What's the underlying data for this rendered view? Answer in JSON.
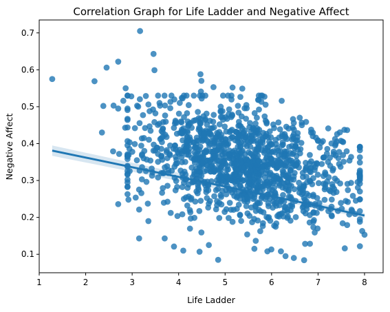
{
  "chart_data": {
    "type": "scatter",
    "title": "Correlation Graph for Life Ladder and Negative Affect",
    "xlabel": "Life Ladder",
    "ylabel": "Negative Affect",
    "xlim": [
      1.0,
      8.4
    ],
    "ylim": [
      0.05,
      0.735
    ],
    "xticks": [
      1,
      2,
      3,
      4,
      5,
      6,
      7,
      8
    ],
    "yticks": [
      0.1,
      0.2,
      0.3,
      0.4,
      0.5,
      0.6,
      0.7
    ],
    "ytick_labels": [
      "0.1",
      "0.2",
      "0.3",
      "0.4",
      "0.5",
      "0.6",
      "0.7"
    ],
    "grid": false,
    "legend": "none",
    "colors": {
      "points": "#1f77b4",
      "regression": "#1f77b4",
      "ci_band": "#1f77b4"
    },
    "regression": {
      "x": [
        1.28,
        8.0
      ],
      "y": [
        0.381,
        0.205
      ],
      "ci_upper_start": 0.395,
      "ci_lower_start": 0.367,
      "ci_upper_end": 0.212,
      "ci_lower_end": 0.198
    },
    "outliers": [
      [
        1.28,
        0.575
      ],
      [
        2.19,
        0.569
      ],
      [
        2.45,
        0.606
      ],
      [
        2.7,
        0.622
      ],
      [
        3.17,
        0.705
      ],
      [
        3.46,
        0.643
      ],
      [
        3.48,
        0.599
      ],
      [
        2.38,
        0.502
      ],
      [
        2.6,
        0.503
      ],
      [
        2.7,
        0.495
      ],
      [
        2.86,
        0.55
      ],
      [
        2.81,
        0.516
      ],
      [
        2.35,
        0.43
      ],
      [
        2.85,
        0.443
      ],
      [
        2.59,
        0.379
      ],
      [
        2.72,
        0.372
      ],
      [
        2.7,
        0.236
      ],
      [
        2.92,
        0.248
      ],
      [
        3.13,
        0.5
      ],
      [
        3.35,
        0.506
      ],
      [
        3.5,
        0.482
      ],
      [
        4.47,
        0.588
      ],
      [
        4.49,
        0.57
      ],
      [
        4.48,
        0.541
      ],
      [
        4.75,
        0.553
      ],
      [
        5.16,
        0.552
      ],
      [
        5.37,
        0.549
      ],
      [
        4.65,
        0.125
      ],
      [
        4.45,
        0.107
      ],
      [
        4.85,
        0.085
      ],
      [
        5.63,
        0.115
      ],
      [
        5.91,
        0.108
      ],
      [
        6.3,
        0.095
      ],
      [
        6.7,
        0.084
      ],
      [
        7.0,
        0.409
      ],
      [
        7.4,
        0.405
      ],
      [
        7.55,
        0.351
      ],
      [
        7.95,
        0.163
      ],
      [
        8.0,
        0.153
      ],
      [
        3.9,
        0.121
      ],
      [
        4.1,
        0.11
      ],
      [
        3.15,
        0.143
      ],
      [
        3.35,
        0.19
      ],
      [
        3.7,
        0.143
      ]
    ],
    "cloud": {
      "count": 1300,
      "x_center": 5.4,
      "x_spread": 1.15,
      "x_min": 2.9,
      "x_max": 7.9,
      "y_intercept": 0.345,
      "y_slope": -0.022,
      "y_center_x": 5.4,
      "y_spread": 0.075
    }
  }
}
